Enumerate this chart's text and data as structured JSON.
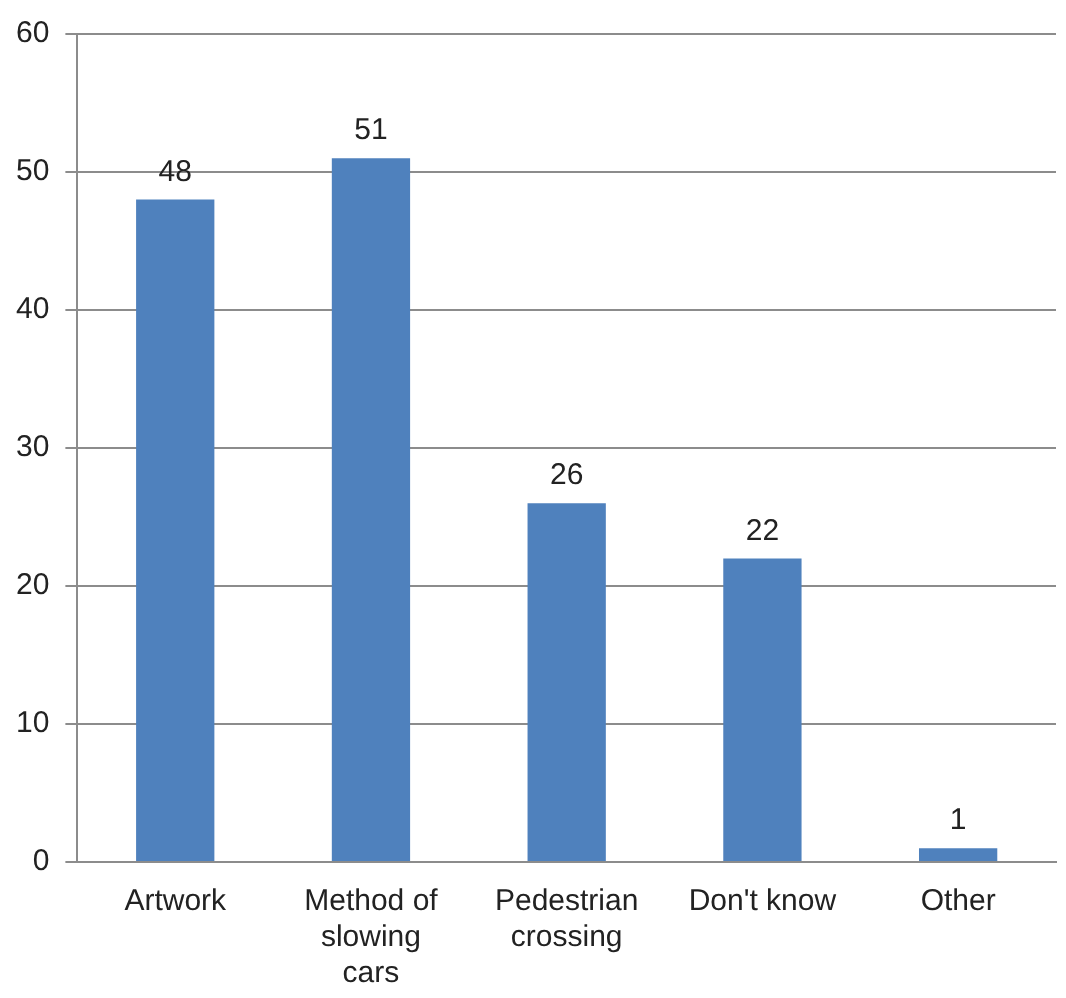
{
  "chart_data": {
    "type": "bar",
    "categories": [
      "Artwork",
      "Method of slowing cars",
      "Pedestrian crossing",
      "Don't know",
      "Other"
    ],
    "values": [
      48,
      51,
      26,
      22,
      1
    ],
    "color": "#4f81bd",
    "ylim": [
      0,
      60
    ],
    "yticks": [
      0,
      10,
      20,
      30,
      40,
      50,
      60
    ],
    "grid": "y",
    "data_labels": true,
    "legend": false
  }
}
